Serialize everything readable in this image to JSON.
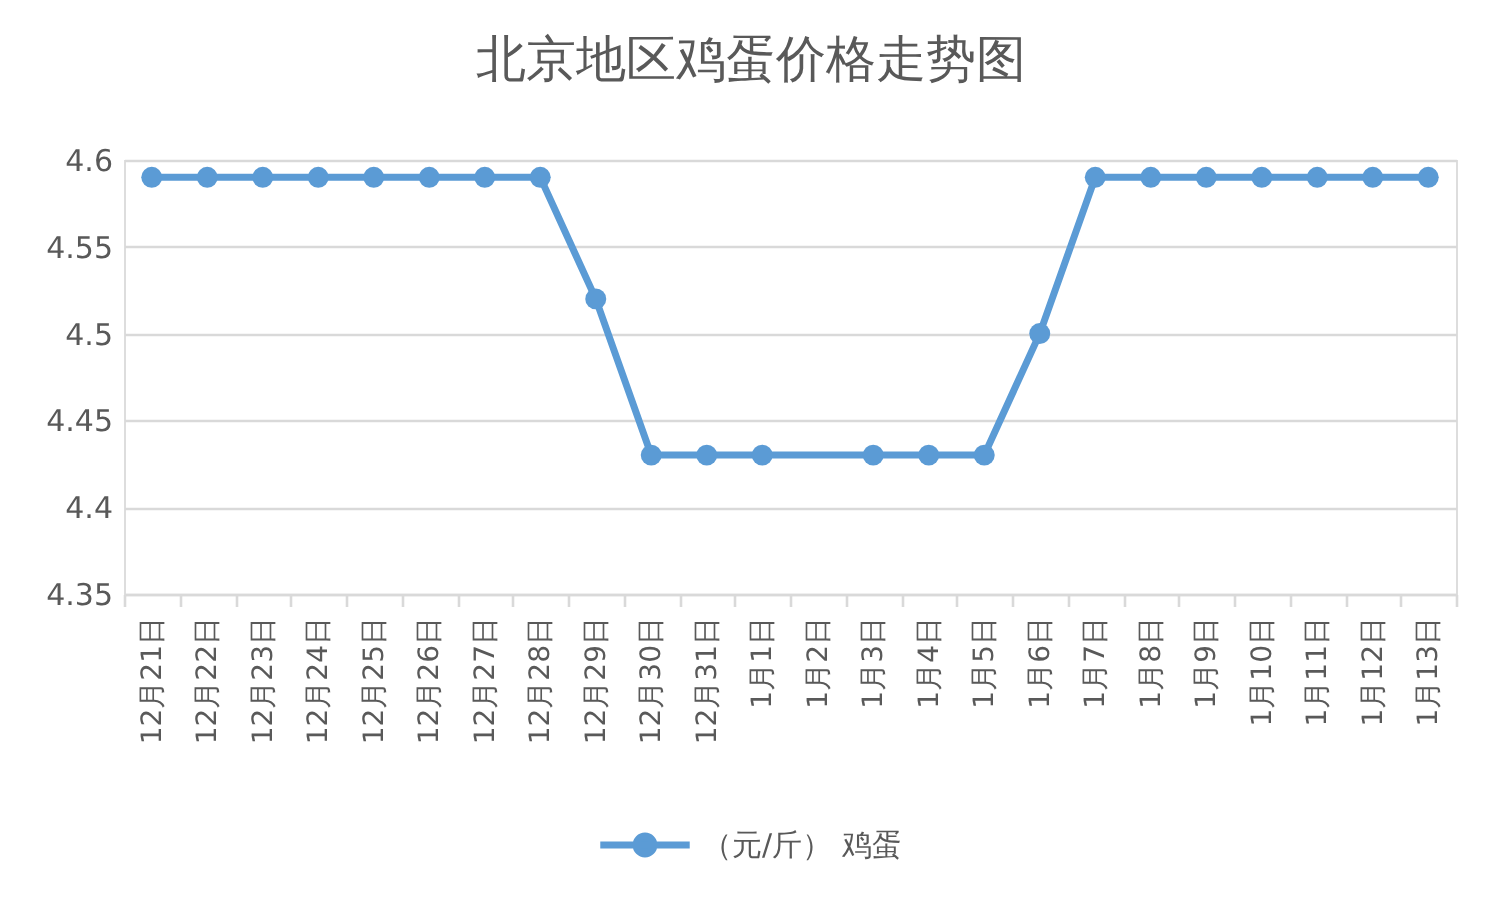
{
  "chart_data": {
    "type": "line",
    "title": "北京地区鸡蛋价格走势图",
    "categories": [
      "12月21日",
      "12月22日",
      "12月23日",
      "12月24日",
      "12月25日",
      "12月26日",
      "12月27日",
      "12月28日",
      "12月29日",
      "12月30日",
      "12月31日",
      "1月1日",
      "1月2日",
      "1月3日",
      "1月4日",
      "1月5日",
      "1月6日",
      "1月7日",
      "1月8日",
      "1月9日",
      "1月10日",
      "1月11日",
      "1月12日",
      "1月13日"
    ],
    "series": [
      {
        "name": "（元/斤） 鸡蛋",
        "color": "#5b9bd5",
        "values": [
          4.59,
          4.59,
          4.59,
          4.59,
          4.59,
          4.59,
          4.59,
          4.59,
          4.52,
          4.43,
          4.43,
          4.43,
          null,
          4.43,
          4.43,
          4.43,
          4.5,
          4.59,
          4.59,
          4.59,
          4.59,
          4.59,
          4.59,
          4.59
        ]
      }
    ],
    "ylim": [
      4.35,
      4.6
    ],
    "yticks": [
      4.35,
      4.4,
      4.45,
      4.5,
      4.55,
      4.6
    ],
    "grid": "y",
    "legend": "bottom",
    "marker": "circle",
    "line_style": "solid"
  }
}
